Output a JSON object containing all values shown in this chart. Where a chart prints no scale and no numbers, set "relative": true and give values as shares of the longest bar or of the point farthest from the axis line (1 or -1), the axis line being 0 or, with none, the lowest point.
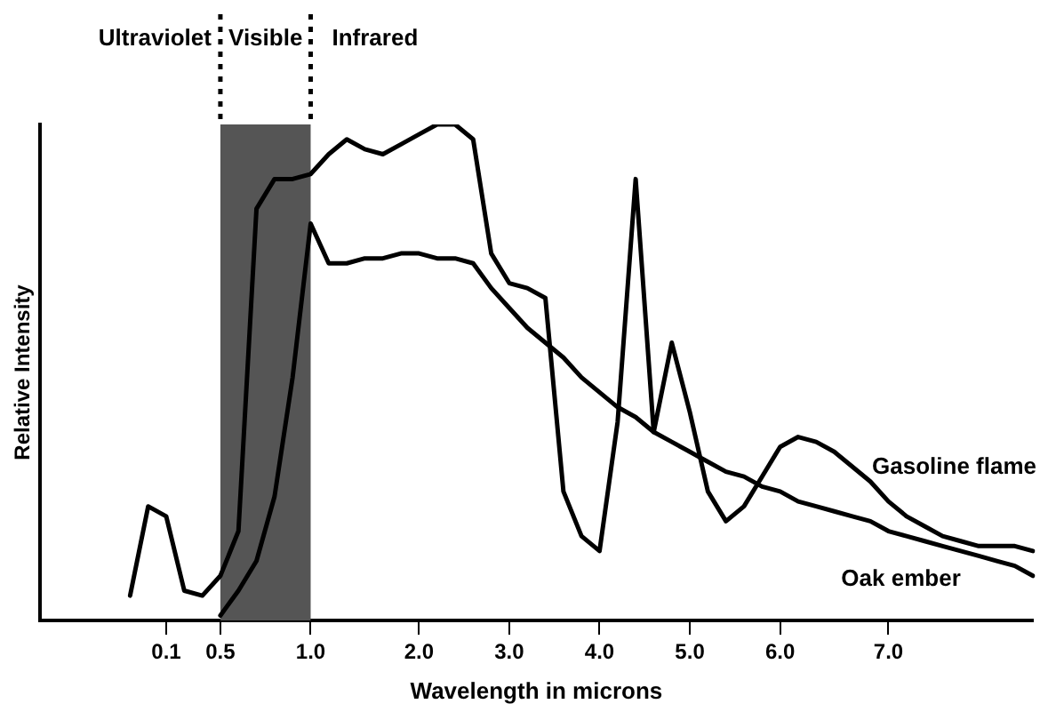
{
  "chart_data": {
    "type": "line",
    "relative": true,
    "xlabel": "Wavelength in microns",
    "ylabel": "Relative Intensity",
    "categories": [
      null,
      null,
      null,
      null,
      null,
      null,
      null,
      "0.1",
      null,
      null,
      "0.5",
      null,
      null,
      null,
      null,
      "1.0",
      null,
      null,
      null,
      null,
      null,
      "2.0",
      null,
      null,
      null,
      null,
      "3.0",
      null,
      null,
      null,
      null,
      "4.0",
      null,
      null,
      null,
      null,
      "5.0",
      null,
      null,
      null,
      null,
      "6.0",
      null,
      null,
      null,
      null,
      null,
      "7.0",
      null,
      null,
      null,
      null,
      null,
      null,
      null,
      null
    ],
    "series": [
      {
        "name": "Gasoline flame",
        "color": "#000000",
        "values": [
          null,
          null,
          null,
          null,
          null,
          0.05,
          0.23,
          0.21,
          0.06,
          0.05,
          0.09,
          0.18,
          0.83,
          0.89,
          0.89,
          0.9,
          0.94,
          0.97,
          0.95,
          0.94,
          0.96,
          0.98,
          1.0,
          1.0,
          0.97,
          0.74,
          0.68,
          0.67,
          0.65,
          0.26,
          0.17,
          0.14,
          0.4,
          0.89,
          0.38,
          0.56,
          0.42,
          0.26,
          0.2,
          0.23,
          0.29,
          0.35,
          0.37,
          0.36,
          0.34,
          0.31,
          0.28,
          0.24,
          0.21,
          0.19,
          0.17,
          0.16,
          0.15,
          0.15,
          0.15,
          0.14
        ]
      },
      {
        "name": "Oak ember",
        "color": "#000000",
        "values": [
          null,
          null,
          null,
          null,
          null,
          null,
          null,
          null,
          null,
          null,
          0.01,
          0.06,
          0.12,
          0.25,
          0.49,
          0.8,
          0.72,
          0.72,
          0.73,
          0.73,
          0.74,
          0.74,
          0.73,
          0.73,
          0.72,
          0.67,
          0.63,
          0.59,
          0.56,
          0.53,
          0.49,
          0.46,
          0.43,
          0.41,
          0.38,
          0.36,
          0.34,
          0.32,
          0.3,
          0.29,
          0.27,
          0.26,
          0.24,
          0.23,
          0.22,
          0.21,
          0.2,
          0.18,
          0.17,
          0.16,
          0.15,
          0.14,
          0.13,
          0.12,
          0.11,
          0.09
        ]
      }
    ],
    "bands": [
      {
        "axis": "x",
        "from": "0.5",
        "to": "1.0",
        "label": "Visible",
        "color": "#555555"
      }
    ],
    "annotations": [
      "Ultraviolet",
      "Infrared"
    ],
    "marker": "none",
    "line_style": "solid",
    "grid": false,
    "legend": false
  }
}
